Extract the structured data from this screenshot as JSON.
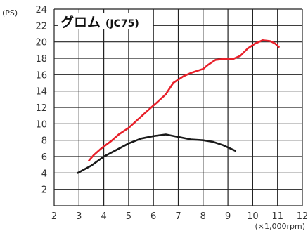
{
  "chart_data": {
    "type": "line",
    "title": "グロム",
    "subtitle": "(JC75)",
    "ylabel": "(PS)",
    "xlabel": "(×1,000rpm)",
    "xlim": [
      2,
      12
    ],
    "ylim": [
      0,
      24
    ],
    "x_ticks": [
      "2",
      "3",
      "4",
      "5",
      "6",
      "7",
      "8",
      "9",
      "10",
      "11",
      "12"
    ],
    "y_ticks": [
      "2",
      "4",
      "6",
      "8",
      "10",
      "12",
      "14",
      "16",
      "18",
      "20",
      "22",
      "24"
    ],
    "grid": true,
    "series": [
      {
        "color": "#e8202a",
        "x": [
          3.4,
          3.6,
          3.9,
          4.3,
          4.6,
          5.0,
          5.4,
          5.8,
          6.1,
          6.5,
          6.8,
          7.2,
          7.5,
          7.8,
          8.0,
          8.2,
          8.5,
          8.8,
          9.2,
          9.5,
          9.8,
          10.1,
          10.4,
          10.7,
          10.9,
          11.05
        ],
        "y": [
          5.5,
          6.2,
          7.0,
          7.9,
          8.7,
          9.5,
          10.6,
          11.7,
          12.5,
          13.6,
          15.0,
          15.8,
          16.2,
          16.5,
          16.7,
          17.2,
          17.8,
          17.9,
          17.9,
          18.3,
          19.2,
          19.8,
          20.2,
          20.1,
          19.8,
          19.4
        ]
      },
      {
        "color": "#1a1a1a",
        "x": [
          2.95,
          3.5,
          4.0,
          4.5,
          5.0,
          5.5,
          6.0,
          6.5,
          7.0,
          7.5,
          8.0,
          8.4,
          8.8,
          9.3
        ],
        "y": [
          4.0,
          4.9,
          6.0,
          6.8,
          7.6,
          8.2,
          8.5,
          8.7,
          8.4,
          8.1,
          8.0,
          7.8,
          7.4,
          6.7
        ]
      }
    ]
  }
}
